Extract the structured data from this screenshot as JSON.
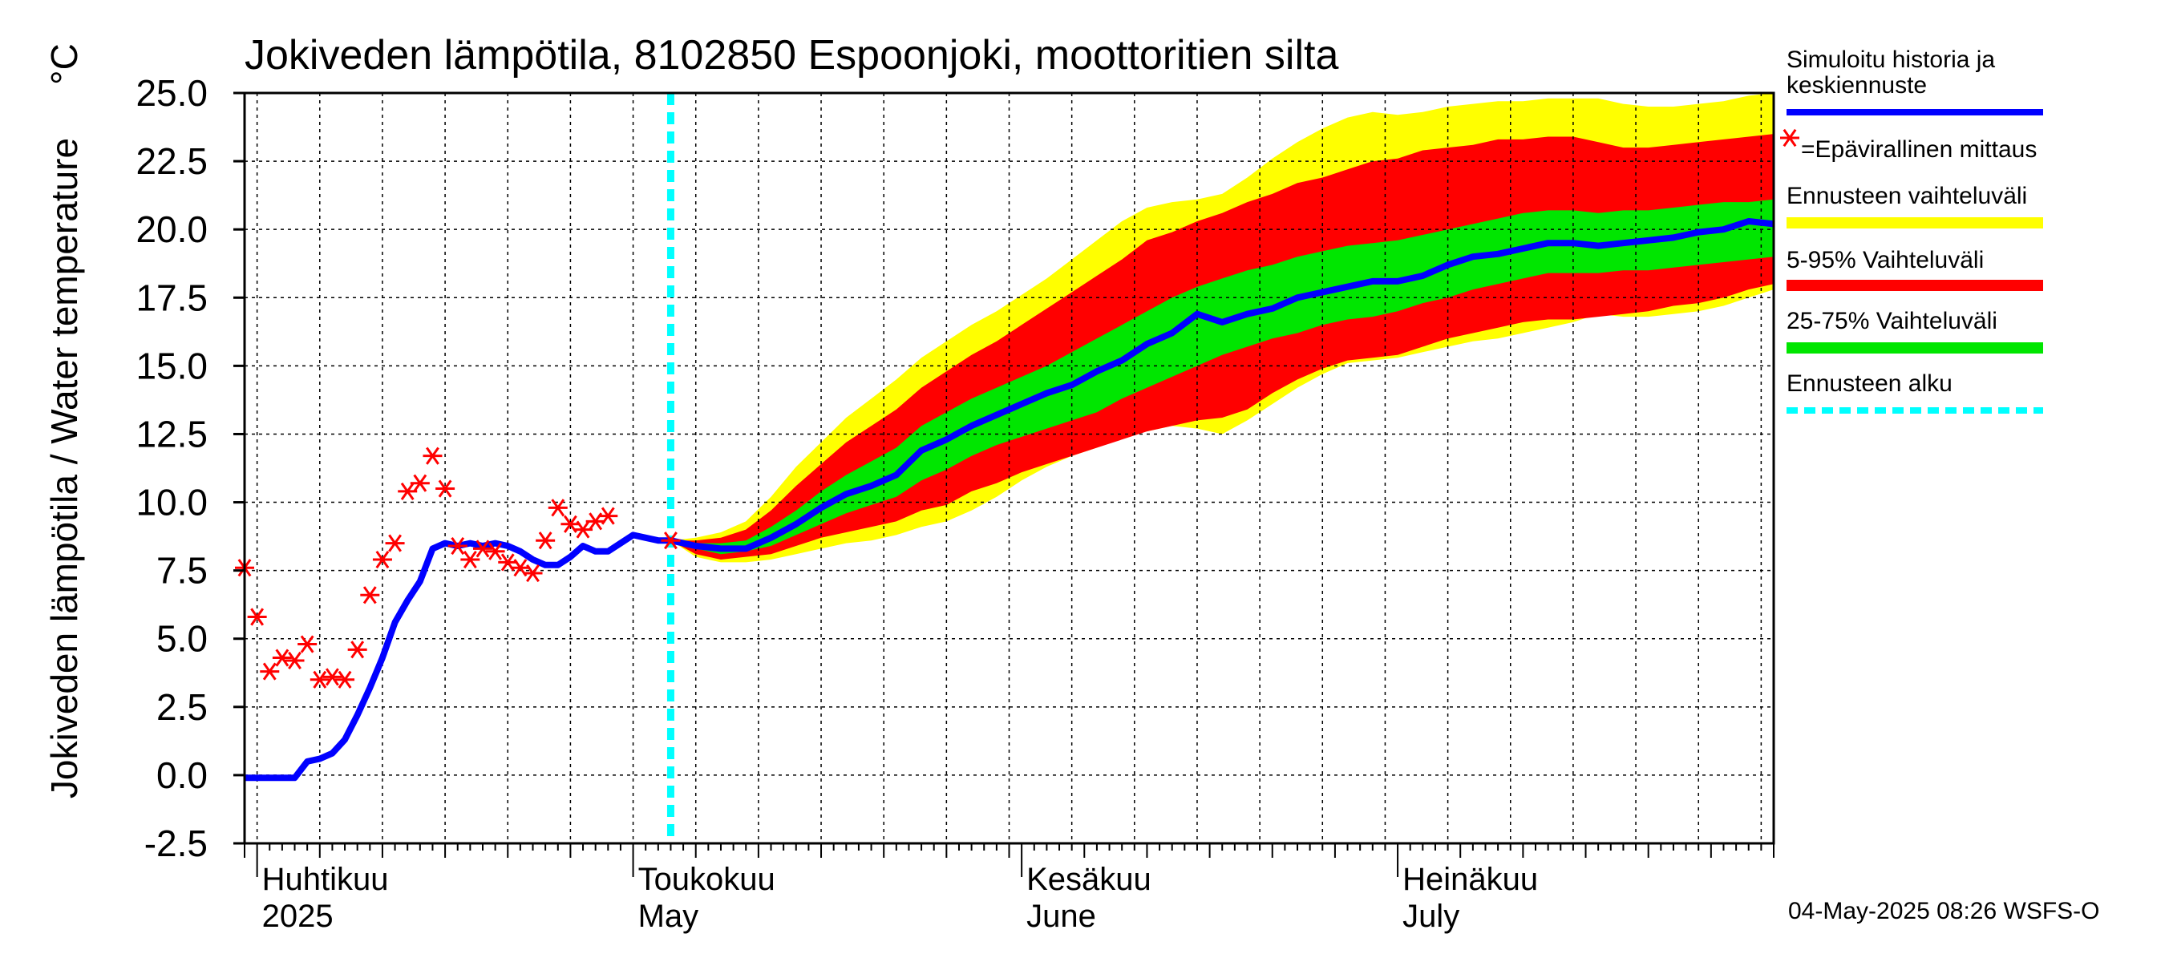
{
  "chart_data": {
    "type": "line",
    "title": "Jokiveden lämpötila, 8102850 Espoonjoki, moottoritien silta",
    "ylabel": "Jokiveden lämpötila / Water temperature",
    "yunit": "°C",
    "ylim": [
      -2.5,
      25.0
    ],
    "yticks": [
      "25.0",
      "22.5",
      "20.0",
      "17.5",
      "15.0",
      "12.5",
      "10.0",
      "7.5",
      "5.0",
      "2.5",
      "0.0",
      "-2.5"
    ],
    "xlim": [
      "2025-03-31",
      "2025-07-31"
    ],
    "grid": true,
    "forecast_start": "2025-05-04",
    "months": [
      {
        "date": "2025-04-01",
        "fi": "Huhtikuu",
        "en": "2025"
      },
      {
        "date": "2025-05-01",
        "fi": "Toukokuu",
        "en": "May"
      },
      {
        "date": "2025-06-01",
        "fi": "Kesäkuu",
        "en": "June"
      },
      {
        "date": "2025-07-01",
        "fi": "Heinäkuu",
        "en": "July"
      }
    ],
    "legend": [
      {
        "label": "Simuloitu historia ja",
        "label2": "keskiennuste",
        "color": "#0000ff",
        "kind": "line"
      },
      {
        "label": "=Epävirallinen mittaus",
        "color": "#ff0000",
        "kind": "marker"
      },
      {
        "label": "Ennusteen vaihteluväli",
        "color": "#ffff00",
        "kind": "band"
      },
      {
        "label": "5-95% Vaihteluväli",
        "color": "#ff0000",
        "kind": "band"
      },
      {
        "label": "25-75% Vaihteluväli",
        "color": "#00e600",
        "kind": "band"
      },
      {
        "label": "Ennusteen alku",
        "color": "#00ffff",
        "kind": "dashed"
      }
    ],
    "footer": "04-May-2025 08:26 WSFS-O",
    "colors": {
      "median": "#0000ff",
      "obs": "#ff0000",
      "full": "#ffff00",
      "p5_95": "#ff0000",
      "p25_75": "#00e600",
      "start": "#00ffff"
    },
    "simulated": {
      "x": [
        "2025-03-31",
        "2025-04-01",
        "2025-04-02",
        "2025-04-03",
        "2025-04-04",
        "2025-04-05",
        "2025-04-06",
        "2025-04-07",
        "2025-04-08",
        "2025-04-09",
        "2025-04-10",
        "2025-04-11",
        "2025-04-12",
        "2025-04-13",
        "2025-04-14",
        "2025-04-15",
        "2025-04-16",
        "2025-04-17",
        "2025-04-18",
        "2025-04-19",
        "2025-04-20",
        "2025-04-21",
        "2025-04-22",
        "2025-04-23",
        "2025-04-24",
        "2025-04-25",
        "2025-04-26",
        "2025-04-27",
        "2025-04-28",
        "2025-04-29",
        "2025-04-30",
        "2025-05-01",
        "2025-05-02",
        "2025-05-03",
        "2025-05-04"
      ],
      "y": [
        -0.1,
        -0.1,
        -0.1,
        -0.1,
        -0.1,
        0.5,
        0.6,
        0.8,
        1.3,
        2.2,
        3.2,
        4.3,
        5.6,
        6.4,
        7.1,
        8.3,
        8.5,
        8.4,
        8.5,
        8.4,
        8.5,
        8.4,
        8.2,
        7.9,
        7.7,
        7.7,
        8.0,
        8.4,
        8.2,
        8.2,
        8.5,
        8.8,
        8.7,
        8.6,
        8.6
      ]
    },
    "forecast": {
      "x": [
        "2025-05-04",
        "2025-05-06",
        "2025-05-08",
        "2025-05-10",
        "2025-05-12",
        "2025-05-14",
        "2025-05-16",
        "2025-05-18",
        "2025-05-20",
        "2025-05-22",
        "2025-05-24",
        "2025-05-26",
        "2025-05-28",
        "2025-05-30",
        "2025-06-01",
        "2025-06-03",
        "2025-06-05",
        "2025-06-07",
        "2025-06-09",
        "2025-06-11",
        "2025-06-13",
        "2025-06-15",
        "2025-06-17",
        "2025-06-19",
        "2025-06-21",
        "2025-06-23",
        "2025-06-25",
        "2025-06-27",
        "2025-06-29",
        "2025-07-01",
        "2025-07-03",
        "2025-07-05",
        "2025-07-07",
        "2025-07-09",
        "2025-07-11",
        "2025-07-13",
        "2025-07-15",
        "2025-07-17",
        "2025-07-19",
        "2025-07-21",
        "2025-07-23",
        "2025-07-25",
        "2025-07-27",
        "2025-07-29",
        "2025-07-31"
      ],
      "median": [
        8.6,
        8.4,
        8.3,
        8.3,
        8.7,
        9.2,
        9.8,
        10.3,
        10.6,
        11.0,
        11.9,
        12.3,
        12.8,
        13.2,
        13.6,
        14.0,
        14.3,
        14.8,
        15.2,
        15.8,
        16.2,
        16.9,
        16.6,
        16.9,
        17.1,
        17.5,
        17.7,
        17.9,
        18.1,
        18.1,
        18.3,
        18.7,
        19.0,
        19.1,
        19.3,
        19.5,
        19.5,
        19.4,
        19.5,
        19.6,
        19.7,
        19.9,
        20.0,
        20.3,
        20.2
      ],
      "p25": [
        8.6,
        8.3,
        8.1,
        8.2,
        8.4,
        8.8,
        9.2,
        9.6,
        9.9,
        10.2,
        10.8,
        11.2,
        11.7,
        12.1,
        12.4,
        12.7,
        13.0,
        13.3,
        13.8,
        14.2,
        14.6,
        15.0,
        15.4,
        15.7,
        16.0,
        16.2,
        16.5,
        16.7,
        16.8,
        17.0,
        17.3,
        17.5,
        17.8,
        18.0,
        18.2,
        18.4,
        18.4,
        18.4,
        18.5,
        18.5,
        18.6,
        18.7,
        18.8,
        18.9,
        19.0
      ],
      "p75": [
        8.6,
        8.5,
        8.5,
        8.6,
        9.1,
        9.7,
        10.4,
        11.0,
        11.5,
        12.0,
        12.8,
        13.3,
        13.8,
        14.2,
        14.6,
        15.0,
        15.5,
        16.0,
        16.5,
        17.0,
        17.5,
        17.9,
        18.2,
        18.5,
        18.7,
        19.0,
        19.2,
        19.4,
        19.5,
        19.6,
        19.8,
        20.0,
        20.2,
        20.4,
        20.6,
        20.7,
        20.7,
        20.6,
        20.7,
        20.7,
        20.8,
        20.9,
        21.0,
        21.0,
        21.1
      ],
      "p5": [
        8.6,
        8.1,
        7.9,
        8.0,
        8.1,
        8.4,
        8.7,
        8.9,
        9.1,
        9.3,
        9.7,
        9.9,
        10.4,
        10.7,
        11.1,
        11.4,
        11.7,
        12.0,
        12.3,
        12.6,
        12.8,
        13.0,
        13.1,
        13.4,
        14.0,
        14.5,
        14.9,
        15.2,
        15.3,
        15.4,
        15.7,
        16.0,
        16.2,
        16.4,
        16.6,
        16.7,
        16.7,
        16.8,
        16.9,
        17.0,
        17.2,
        17.3,
        17.5,
        17.8,
        18.0
      ],
      "p95": [
        8.6,
        8.6,
        8.7,
        9.0,
        9.7,
        10.6,
        11.4,
        12.2,
        12.8,
        13.4,
        14.2,
        14.8,
        15.4,
        15.9,
        16.5,
        17.1,
        17.7,
        18.3,
        18.9,
        19.6,
        19.9,
        20.3,
        20.6,
        21.0,
        21.3,
        21.7,
        21.9,
        22.2,
        22.5,
        22.6,
        22.9,
        23.0,
        23.1,
        23.3,
        23.3,
        23.4,
        23.4,
        23.2,
        23.0,
        23.0,
        23.1,
        23.2,
        23.3,
        23.4,
        23.5
      ],
      "min": [
        8.6,
        8.0,
        7.8,
        7.8,
        7.9,
        8.1,
        8.3,
        8.5,
        8.6,
        8.8,
        9.1,
        9.3,
        9.7,
        10.2,
        10.8,
        11.3,
        11.7,
        12.0,
        12.4,
        12.6,
        12.8,
        12.7,
        12.5,
        13.0,
        13.6,
        14.2,
        14.7,
        15.1,
        15.2,
        15.3,
        15.5,
        15.7,
        15.9,
        16.0,
        16.2,
        16.4,
        16.6,
        16.9,
        16.8,
        16.8,
        16.9,
        17.0,
        17.2,
        17.5,
        17.8
      ],
      "max": [
        8.6,
        8.7,
        8.9,
        9.3,
        10.2,
        11.3,
        12.2,
        13.1,
        13.8,
        14.5,
        15.3,
        15.9,
        16.5,
        17.0,
        17.6,
        18.2,
        18.9,
        19.6,
        20.3,
        20.8,
        21.0,
        21.1,
        21.3,
        21.9,
        22.6,
        23.2,
        23.7,
        24.1,
        24.3,
        24.2,
        24.3,
        24.5,
        24.6,
        24.7,
        24.7,
        24.8,
        24.8,
        24.8,
        24.6,
        24.5,
        24.5,
        24.6,
        24.7,
        24.9,
        25.0
      ]
    },
    "observations": {
      "x": [
        "2025-03-31",
        "2025-04-01",
        "2025-04-02",
        "2025-04-03",
        "2025-04-04",
        "2025-04-05",
        "2025-04-06",
        "2025-04-07",
        "2025-04-08",
        "2025-04-09",
        "2025-04-10",
        "2025-04-11",
        "2025-04-12",
        "2025-04-13",
        "2025-04-14",
        "2025-04-15",
        "2025-04-16",
        "2025-04-17",
        "2025-04-18",
        "2025-04-19",
        "2025-04-20",
        "2025-04-21",
        "2025-04-22",
        "2025-04-23",
        "2025-04-24",
        "2025-04-25",
        "2025-04-26",
        "2025-04-27",
        "2025-04-28",
        "2025-04-29",
        "2025-04-30",
        "2025-05-01",
        "2025-05-04"
      ],
      "y": [
        7.6,
        5.8,
        3.8,
        4.3,
        4.2,
        4.8,
        3.5,
        3.6,
        3.5,
        4.6,
        6.6,
        7.9,
        8.5,
        10.4,
        10.7,
        11.7,
        10.5,
        8.4,
        7.9,
        8.3,
        8.2,
        7.8,
        7.6,
        7.4,
        8.6,
        9.8,
        9.2,
        9.0,
        9.3,
        9.5,
        null,
        null,
        8.6
      ]
    }
  }
}
